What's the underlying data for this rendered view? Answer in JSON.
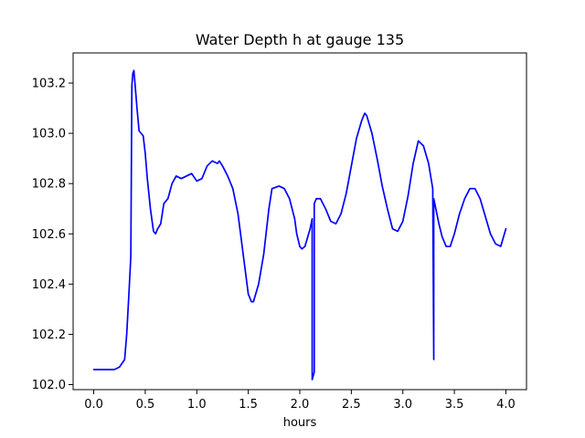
{
  "chart_data": {
    "type": "line",
    "title": "Water Depth h at gauge 135",
    "xlabel": "hours",
    "ylabel": "",
    "xlim": [
      -0.2,
      4.2
    ],
    "ylim": [
      101.98,
      103.32
    ],
    "xticks": [
      0.0,
      0.5,
      1.0,
      1.5,
      2.0,
      2.5,
      3.0,
      3.5,
      4.0
    ],
    "xtick_labels": [
      "0.0",
      "0.5",
      "1.0",
      "1.5",
      "2.0",
      "2.5",
      "3.0",
      "3.5",
      "4.0"
    ],
    "yticks": [
      102.0,
      102.2,
      102.4,
      102.6,
      102.8,
      103.0,
      103.2
    ],
    "ytick_labels": [
      "102.0",
      "102.2",
      "102.4",
      "102.6",
      "102.8",
      "103.0",
      "103.2"
    ],
    "grid": false,
    "series": [
      {
        "color": "#0000ff",
        "x": [
          0.0,
          0.1,
          0.2,
          0.25,
          0.3,
          0.32,
          0.34,
          0.36,
          0.37,
          0.37,
          0.38,
          0.39,
          0.4,
          0.42,
          0.44,
          0.46,
          0.48,
          0.5,
          0.52,
          0.55,
          0.58,
          0.6,
          0.62,
          0.65,
          0.68,
          0.72,
          0.76,
          0.8,
          0.85,
          0.9,
          0.95,
          1.0,
          1.05,
          1.1,
          1.15,
          1.2,
          1.22,
          1.25,
          1.3,
          1.35,
          1.4,
          1.45,
          1.5,
          1.53,
          1.55,
          1.6,
          1.65,
          1.7,
          1.73,
          1.8,
          1.85,
          1.9,
          1.95,
          1.97,
          2.0,
          2.02,
          2.05,
          2.1,
          2.12,
          2.12,
          2.14,
          2.14,
          2.16,
          2.2,
          2.25,
          2.3,
          2.35,
          2.4,
          2.45,
          2.5,
          2.55,
          2.6,
          2.63,
          2.65,
          2.7,
          2.75,
          2.8,
          2.85,
          2.9,
          2.95,
          3.0,
          3.05,
          3.1,
          3.15,
          3.2,
          3.25,
          3.29,
          3.3,
          3.3,
          3.32,
          3.35,
          3.38,
          3.42,
          3.46,
          3.5,
          3.55,
          3.6,
          3.65,
          3.7,
          3.75,
          3.8,
          3.85,
          3.9,
          3.95,
          4.0
        ],
        "y": [
          102.06,
          102.06,
          102.06,
          102.07,
          102.1,
          102.2,
          102.35,
          102.51,
          103.18,
          103.19,
          103.24,
          103.25,
          103.2,
          103.1,
          103.01,
          103.0,
          102.99,
          102.92,
          102.82,
          102.7,
          102.61,
          102.6,
          102.62,
          102.64,
          102.72,
          102.74,
          102.8,
          102.83,
          102.82,
          102.83,
          102.84,
          102.81,
          102.82,
          102.87,
          102.89,
          102.88,
          102.89,
          102.87,
          102.83,
          102.78,
          102.68,
          102.52,
          102.36,
          102.33,
          102.33,
          102.4,
          102.52,
          102.7,
          102.78,
          102.79,
          102.78,
          102.74,
          102.66,
          102.6,
          102.55,
          102.54,
          102.55,
          102.62,
          102.66,
          102.02,
          102.05,
          102.72,
          102.74,
          102.74,
          102.7,
          102.65,
          102.64,
          102.68,
          102.76,
          102.87,
          102.98,
          103.05,
          103.08,
          103.07,
          103.0,
          102.9,
          102.79,
          102.7,
          102.62,
          102.61,
          102.65,
          102.75,
          102.88,
          102.97,
          102.95,
          102.88,
          102.78,
          102.1,
          102.74,
          102.7,
          102.64,
          102.59,
          102.55,
          102.55,
          102.6,
          102.68,
          102.74,
          102.78,
          102.78,
          102.74,
          102.67,
          102.6,
          102.56,
          102.55,
          102.62
        ]
      }
    ]
  }
}
